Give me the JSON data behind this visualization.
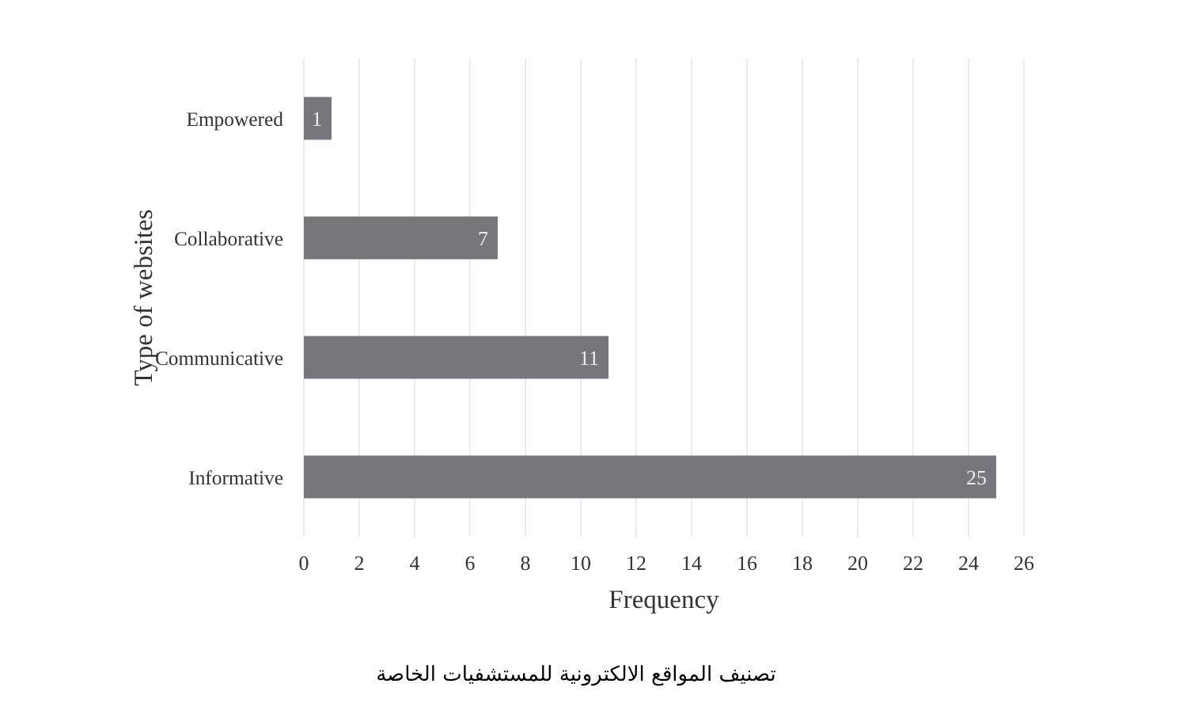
{
  "chart_data": {
    "type": "bar",
    "orientation": "horizontal",
    "title": "تصنيف المواقع الالكترونية للمستشفيات الخاصة",
    "xlabel": "Frequency",
    "ylabel": "Type of websites",
    "categories": [
      "Empowered",
      "Collaborative",
      "Communicative",
      "Informative"
    ],
    "values": [
      1,
      7,
      11,
      25
    ],
    "color": "#76777b",
    "data_labels": true,
    "xlim": [
      0,
      26
    ],
    "xticks": [
      0,
      2,
      4,
      6,
      8,
      10,
      12,
      14,
      16,
      18,
      20,
      22,
      24,
      26
    ],
    "grid": "x"
  }
}
